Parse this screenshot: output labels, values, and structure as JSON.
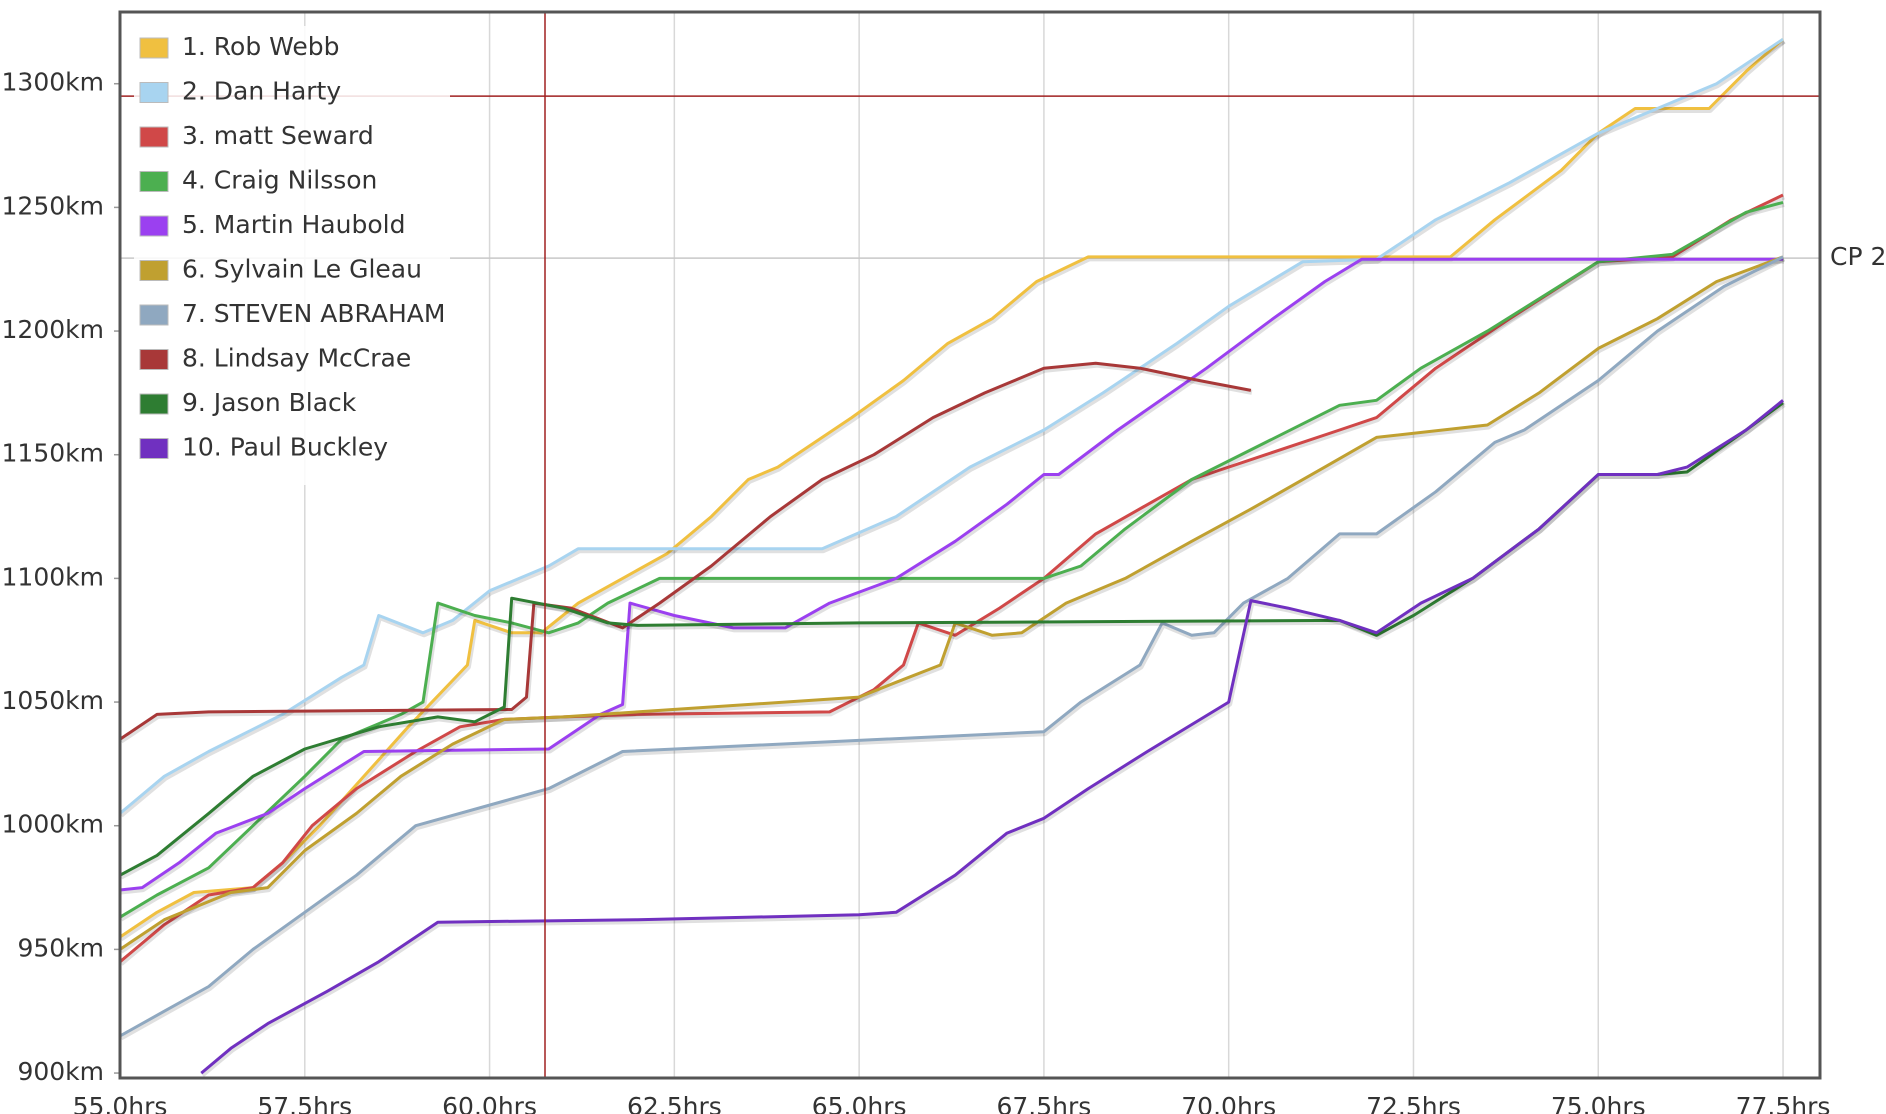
{
  "chart_data": {
    "type": "line",
    "xlim": [
      55,
      78
    ],
    "ylim": [
      898,
      1329
    ],
    "xticks": [
      {
        "value": 55,
        "label": "55.0hrs"
      },
      {
        "value": 57.5,
        "label": "57.5hrs"
      },
      {
        "value": 60,
        "label": "60.0hrs"
      },
      {
        "value": 62.5,
        "label": "62.5hrs"
      },
      {
        "value": 65,
        "label": "65.0hrs"
      },
      {
        "value": 67.5,
        "label": "67.5hrs"
      },
      {
        "value": 70,
        "label": "70.0hrs"
      },
      {
        "value": 72.5,
        "label": "72.5hrs"
      },
      {
        "value": 75,
        "label": "75.0hrs"
      },
      {
        "value": 77.5,
        "label": "77.5hrs"
      }
    ],
    "yticks": [
      {
        "value": 900,
        "label": "900km"
      },
      {
        "value": 950,
        "label": "950km"
      },
      {
        "value": 1000,
        "label": "1000km"
      },
      {
        "value": 1050,
        "label": "1050km"
      },
      {
        "value": 1100,
        "label": "1100km"
      },
      {
        "value": 1150,
        "label": "1150km"
      },
      {
        "value": 1200,
        "label": "1200km"
      },
      {
        "value": 1250,
        "label": "1250km"
      },
      {
        "value": 1300,
        "label": "1300km"
      }
    ],
    "grid": true,
    "legend": "upper-left",
    "reference_line": {
      "value": 1229.5,
      "label": "CP 2"
    },
    "crosshair": {
      "x": 60.75,
      "y": 1295
    },
    "series": [
      {
        "name": "1. Rob Webb",
        "color": "#f0c040",
        "x": [
          55.0,
          55.5,
          56.0,
          56.8,
          57.2,
          57.7,
          58.3,
          58.9,
          59.7,
          59.8,
          60.3,
          60.7,
          61.2,
          61.8,
          62.4,
          63.0,
          63.5,
          63.9,
          64.9,
          65.6,
          66.2,
          66.8,
          67.4,
          68.1,
          73.0,
          73.6,
          74.5,
          75.0,
          75.5,
          76.5,
          77.0,
          77.5
        ],
        "values": [
          955,
          965,
          973,
          975,
          985,
          1000,
          1020,
          1040,
          1065,
          1083,
          1078,
          1078,
          1090,
          1100,
          1110,
          1125,
          1140,
          1145,
          1165,
          1180,
          1195,
          1205,
          1220,
          1230,
          1230,
          1245,
          1265,
          1280,
          1290,
          1290,
          1305,
          1318
        ]
      },
      {
        "name": "2. Dan Harty",
        "color": "#a8d4f0",
        "x": [
          55.0,
          55.6,
          56.2,
          57.2,
          58.0,
          58.3,
          58.5,
          59.1,
          59.5,
          60.0,
          60.8,
          61.2,
          64.5,
          65.5,
          66.5,
          67.5,
          68.3,
          69.3,
          70.0,
          71.0,
          72.0,
          72.8,
          73.8,
          75.0,
          75.8,
          76.6,
          77.5
        ],
        "values": [
          1005,
          1020,
          1030,
          1045,
          1060,
          1065,
          1085,
          1078,
          1083,
          1095,
          1105,
          1112,
          1112,
          1125,
          1145,
          1160,
          1175,
          1195,
          1210,
          1228,
          1229,
          1245,
          1260,
          1280,
          1290,
          1300,
          1318
        ]
      },
      {
        "name": "3. matt Seward",
        "color": "#d04848",
        "x": [
          55.0,
          55.6,
          56.2,
          56.8,
          57.2,
          57.6,
          58.2,
          59.0,
          59.6,
          60.2,
          61.0,
          62.0,
          64.6,
          65.2,
          65.6,
          65.8,
          66.3,
          66.9,
          67.5,
          68.2,
          69.5,
          70.5,
          71.5,
          72.0,
          72.8,
          73.8,
          75.0,
          76.0,
          76.8,
          77.5
        ],
        "values": [
          945,
          960,
          972,
          975,
          985,
          1000,
          1015,
          1030,
          1040,
          1043,
          1044,
          1045,
          1046,
          1055,
          1065,
          1082,
          1077,
          1088,
          1100,
          1118,
          1140,
          1150,
          1160,
          1165,
          1185,
          1205,
          1228,
          1230,
          1245,
          1255
        ]
      },
      {
        "name": "4. Craig Nilsson",
        "color": "#4caf50",
        "x": [
          55.0,
          55.5,
          56.2,
          56.8,
          57.5,
          58.0,
          58.8,
          59.1,
          59.3,
          59.8,
          60.3,
          60.8,
          61.2,
          61.6,
          62.3,
          67.5,
          68.0,
          68.6,
          69.5,
          70.5,
          71.5,
          72.0,
          72.6,
          73.5,
          75.0,
          76.0,
          77.0,
          77.5
        ],
        "values": [
          963,
          972,
          983,
          1000,
          1020,
          1035,
          1045,
          1050,
          1090,
          1085,
          1082,
          1078,
          1082,
          1090,
          1100,
          1100,
          1105,
          1120,
          1140,
          1155,
          1170,
          1172,
          1185,
          1200,
          1228,
          1231,
          1248,
          1252
        ]
      },
      {
        "name": "5. Martin Haubold",
        "color": "#9b40f0",
        "x": [
          55.0,
          55.3,
          55.8,
          56.3,
          57.0,
          57.5,
          58.3,
          60.8,
          61.5,
          61.8,
          61.9,
          62.5,
          63.3,
          64.0,
          64.6,
          65.5,
          66.3,
          67.0,
          67.5,
          67.7,
          68.5,
          69.7,
          70.6,
          71.3,
          71.8,
          77.5
        ],
        "values": [
          974,
          975,
          985,
          997,
          1005,
          1015,
          1030,
          1031,
          1045,
          1049,
          1090,
          1085,
          1080,
          1080,
          1090,
          1100,
          1115,
          1130,
          1142,
          1142,
          1160,
          1185,
          1205,
          1220,
          1229,
          1229
        ]
      },
      {
        "name": "6. Sylvain Le Gleau",
        "color": "#c0a030",
        "x": [
          55.0,
          55.6,
          56.5,
          57.0,
          57.5,
          58.2,
          58.8,
          59.5,
          60.2,
          61.0,
          62.0,
          65.0,
          65.5,
          66.1,
          66.3,
          66.8,
          67.2,
          67.8,
          68.6,
          69.5,
          70.3,
          71.3,
          72.0,
          73.5,
          74.2,
          75.0,
          75.8,
          76.6,
          77.5
        ],
        "values": [
          950,
          962,
          973,
          975,
          990,
          1005,
          1020,
          1033,
          1043,
          1044,
          1046,
          1052,
          1058,
          1065,
          1082,
          1077,
          1078,
          1090,
          1100,
          1115,
          1128,
          1145,
          1157,
          1162,
          1175,
          1193,
          1205,
          1220,
          1230
        ]
      },
      {
        "name": "7. STEVEN ABRAHAM",
        "color": "#8fa8c0",
        "x": [
          55.0,
          55.6,
          56.2,
          56.8,
          57.5,
          58.2,
          59.0,
          60.2,
          60.8,
          61.8,
          67.5,
          68.0,
          68.8,
          69.1,
          69.5,
          69.8,
          70.2,
          70.8,
          71.5,
          72.0,
          72.8,
          73.6,
          74.0,
          75.0,
          75.8,
          76.7,
          77.5
        ],
        "values": [
          915,
          925,
          935,
          950,
          965,
          980,
          1000,
          1010,
          1015,
          1030,
          1038,
          1050,
          1065,
          1082,
          1077,
          1078,
          1090,
          1100,
          1118,
          1118,
          1135,
          1155,
          1160,
          1180,
          1200,
          1218,
          1230
        ]
      },
      {
        "name": "8. Lindsay McCrae",
        "color": "#a83838",
        "x": [
          55.0,
          55.5,
          56.2,
          60.3,
          60.5,
          60.6,
          61.1,
          61.8,
          62.3,
          63.0,
          63.8,
          64.5,
          65.2,
          66.0,
          66.7,
          67.5,
          68.2,
          68.8,
          69.6,
          70.3
        ],
        "values": [
          1035,
          1045,
          1046,
          1047,
          1052,
          1090,
          1088,
          1080,
          1090,
          1105,
          1125,
          1140,
          1150,
          1165,
          1175,
          1185,
          1187,
          1185,
          1180,
          1176
        ]
      },
      {
        "name": "9. Jason Black",
        "color": "#2e7d32",
        "x": [
          55.0,
          55.5,
          56.2,
          56.8,
          57.5,
          58.5,
          59.3,
          59.8,
          60.2,
          60.3,
          61.0,
          61.6,
          62.0,
          65.0,
          71.5,
          72.0,
          72.5,
          73.3,
          74.2,
          75.0,
          75.8,
          76.2,
          77.0,
          77.5
        ],
        "values": [
          980,
          988,
          1005,
          1020,
          1031,
          1040,
          1044,
          1042,
          1048,
          1092,
          1088,
          1082,
          1081,
          1082,
          1083,
          1077,
          1085,
          1100,
          1120,
          1142,
          1142,
          1143,
          1160,
          1171
        ]
      },
      {
        "name": "10. Paul Buckley",
        "color": "#7030c0",
        "x": [
          56.1,
          56.5,
          57.0,
          57.8,
          58.5,
          59.3,
          62.0,
          65.0,
          65.5,
          66.3,
          67.0,
          67.5,
          68.1,
          68.9,
          70.0,
          70.3,
          70.8,
          71.5,
          72.0,
          72.6,
          73.3,
          74.2,
          75.0,
          75.8,
          76.2,
          77.0,
          77.5
        ],
        "values": [
          900,
          910,
          920,
          933,
          945,
          961,
          962,
          964,
          965,
          980,
          997,
          1003,
          1015,
          1030,
          1050,
          1091,
          1088,
          1083,
          1078,
          1090,
          1100,
          1120,
          1142,
          1142,
          1145,
          1160,
          1172
        ]
      }
    ]
  }
}
